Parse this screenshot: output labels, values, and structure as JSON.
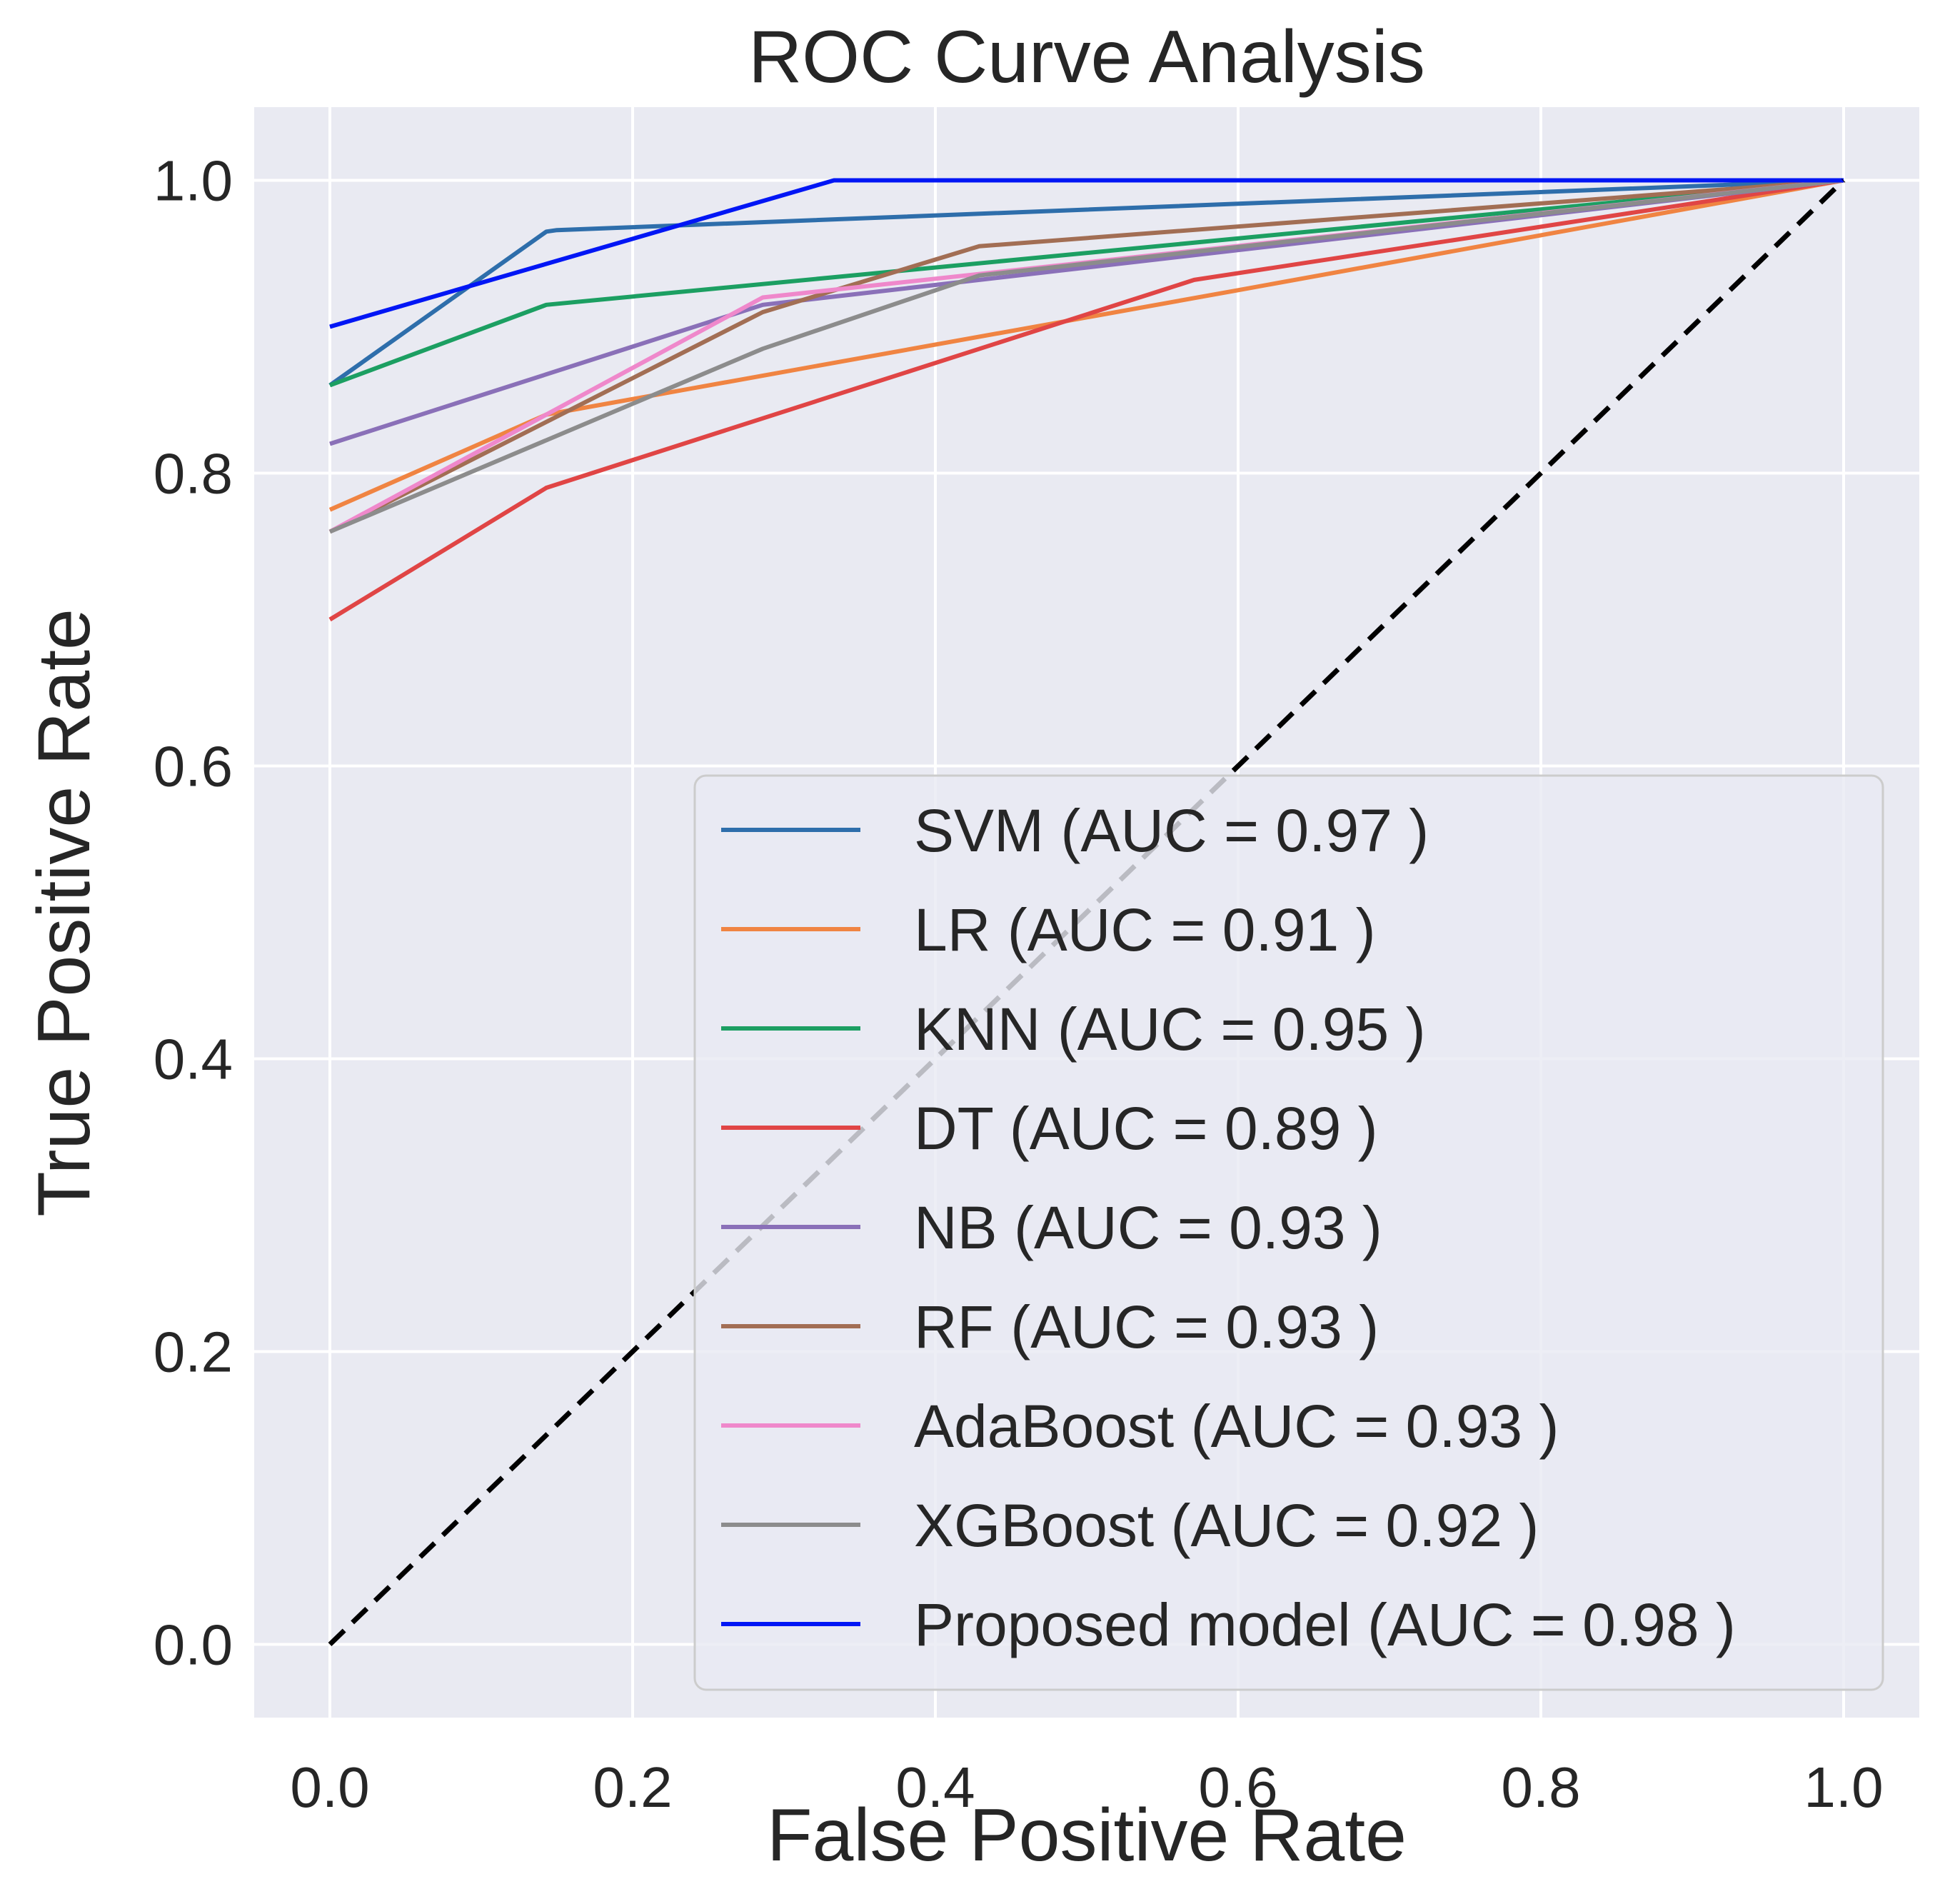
{
  "chart_data": {
    "type": "line",
    "title": "ROC Curve Analysis",
    "xlabel": "False Positive Rate",
    "ylabel": "True Positive Rate",
    "xlim": [
      -0.05,
      1.05
    ],
    "ylim": [
      -0.05,
      1.05
    ],
    "xticks": [
      0.0,
      0.2,
      0.4,
      0.6,
      0.8,
      1.0
    ],
    "yticks": [
      0.0,
      0.2,
      0.4,
      0.6,
      0.8,
      1.0
    ],
    "xtick_labels": [
      "0.0",
      "0.2",
      "0.4",
      "0.6",
      "0.8",
      "1.0"
    ],
    "ytick_labels": [
      "0.0",
      "0.2",
      "0.4",
      "0.6",
      "0.8",
      "1.0"
    ],
    "grid": true,
    "legend_position": "lower-right",
    "diagonal": {
      "x": [
        0,
        1
      ],
      "y": [
        0,
        1
      ],
      "style": "dashed",
      "color": "#000000"
    },
    "series": [
      {
        "name": "SVM (AUC = 0.97 )",
        "color": "#2e6eab",
        "x": [
          0,
          0.143,
          0.15,
          1
        ],
        "y": [
          0.86,
          0.965,
          0.966,
          1
        ]
      },
      {
        "name": "LR (AUC = 0.91 )",
        "color": "#f08442",
        "x": [
          0,
          0.143,
          0.6,
          1
        ],
        "y": [
          0.775,
          0.84,
          0.925,
          1
        ]
      },
      {
        "name": "KNN (AUC = 0.95 )",
        "color": "#1c9f62",
        "x": [
          0,
          0.143,
          1
        ],
        "y": [
          0.86,
          0.915,
          1
        ]
      },
      {
        "name": "DT (AUC = 0.89 )",
        "color": "#e04545",
        "x": [
          0,
          0.143,
          0.571,
          1
        ],
        "y": [
          0.7,
          0.79,
          0.932,
          1
        ]
      },
      {
        "name": "NB (AUC = 0.93 )",
        "color": "#8a70b8",
        "x": [
          0,
          0.286,
          1
        ],
        "y": [
          0.82,
          0.915,
          1
        ]
      },
      {
        "name": "RF (AUC = 0.93 )",
        "color": "#a26e54",
        "x": [
          0,
          0.286,
          0.429,
          1
        ],
        "y": [
          0.76,
          0.91,
          0.955,
          1
        ]
      },
      {
        "name": "AdaBoost (AUC = 0.93 )",
        "color": "#ef88cb",
        "x": [
          0,
          0.286,
          1
        ],
        "y": [
          0.76,
          0.92,
          1
        ]
      },
      {
        "name": "XGBoost (AUC = 0.92 )",
        "color": "#8c8c8c",
        "x": [
          0,
          0.286,
          0.429,
          1
        ],
        "y": [
          0.76,
          0.885,
          0.935,
          1
        ]
      },
      {
        "name": "Proposed model (AUC = 0.98 )",
        "color": "#0016f5",
        "x": [
          0,
          0.333,
          1
        ],
        "y": [
          0.9,
          1,
          1
        ]
      }
    ]
  }
}
